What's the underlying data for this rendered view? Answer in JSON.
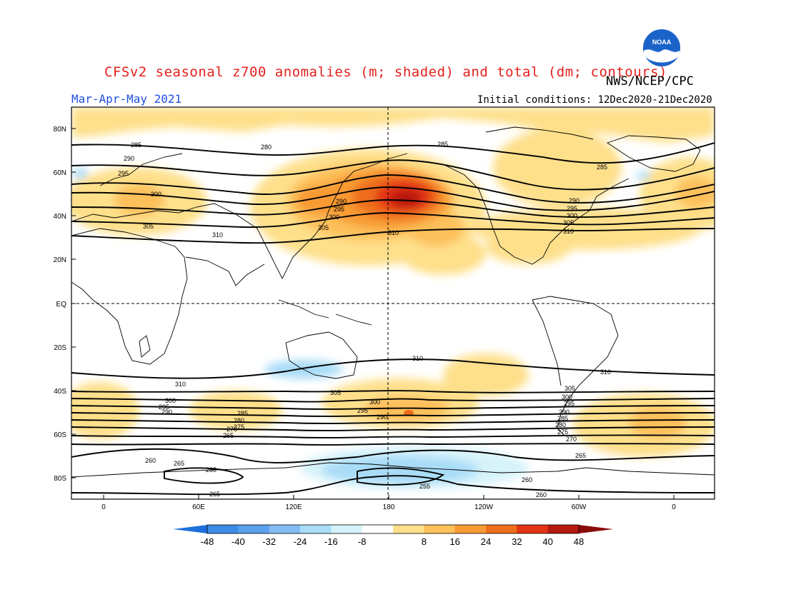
{
  "title": "CFSv2 seasonal z700 anomalies (m; shaded) and total (dm; contours)",
  "agency": "NWS/NCEP/CPC",
  "logo_text": "NOAA",
  "season": "Mar-Apr-May 2021",
  "initial_conditions": "Initial conditions: 12Dec2020-21Dec2020",
  "lat_labels": [
    "80N",
    "60N",
    "40N",
    "20N",
    "EQ",
    "20S",
    "40S",
    "60S",
    "80S"
  ],
  "lon_labels": [
    "0",
    "60E",
    "120E",
    "180",
    "120W",
    "60W",
    "0"
  ],
  "colorbar": {
    "labels": [
      "-48",
      "-40",
      "-32",
      "-24",
      "-16",
      "-8",
      "8",
      "16",
      "24",
      "32",
      "40",
      "48"
    ],
    "colors": [
      "#1e6fdc",
      "#3c8be6",
      "#5aa0ec",
      "#82bcf2",
      "#a8dcf7",
      "#d6f3fa",
      "#ffffff",
      "#fee08b",
      "#fdc05a",
      "#f89a33",
      "#ee6d1a",
      "#e33314",
      "#b5190f",
      "#8b0a0a"
    ]
  },
  "contour_labels": [
    {
      "text": "285"
    },
    {
      "text": "280"
    },
    {
      "text": "290"
    },
    {
      "text": "295"
    },
    {
      "text": "300"
    },
    {
      "text": "305"
    },
    {
      "text": "310"
    },
    {
      "text": "290"
    },
    {
      "text": "295"
    },
    {
      "text": "300"
    },
    {
      "text": "305"
    },
    {
      "text": "285"
    },
    {
      "text": "310"
    },
    {
      "text": "290"
    },
    {
      "text": "295"
    },
    {
      "text": "300"
    },
    {
      "text": "305"
    },
    {
      "text": "310"
    },
    {
      "text": "285"
    },
    {
      "text": "310"
    },
    {
      "text": "310"
    },
    {
      "text": "310"
    },
    {
      "text": "305"
    },
    {
      "text": "300"
    },
    {
      "text": "295"
    },
    {
      "text": "290"
    },
    {
      "text": "285"
    },
    {
      "text": "280"
    },
    {
      "text": "275"
    },
    {
      "text": "270"
    },
    {
      "text": "265"
    },
    {
      "text": "305"
    },
    {
      "text": "300"
    },
    {
      "text": "295"
    },
    {
      "text": "290"
    },
    {
      "text": "285"
    },
    {
      "text": "280"
    },
    {
      "text": "275"
    },
    {
      "text": "270"
    },
    {
      "text": "265"
    },
    {
      "text": "260"
    },
    {
      "text": "265"
    },
    {
      "text": "260"
    },
    {
      "text": "255"
    },
    {
      "text": "260"
    },
    {
      "text": "260"
    },
    {
      "text": "265"
    },
    {
      "text": "300"
    },
    {
      "text": "295"
    },
    {
      "text": "290"
    }
  ]
}
